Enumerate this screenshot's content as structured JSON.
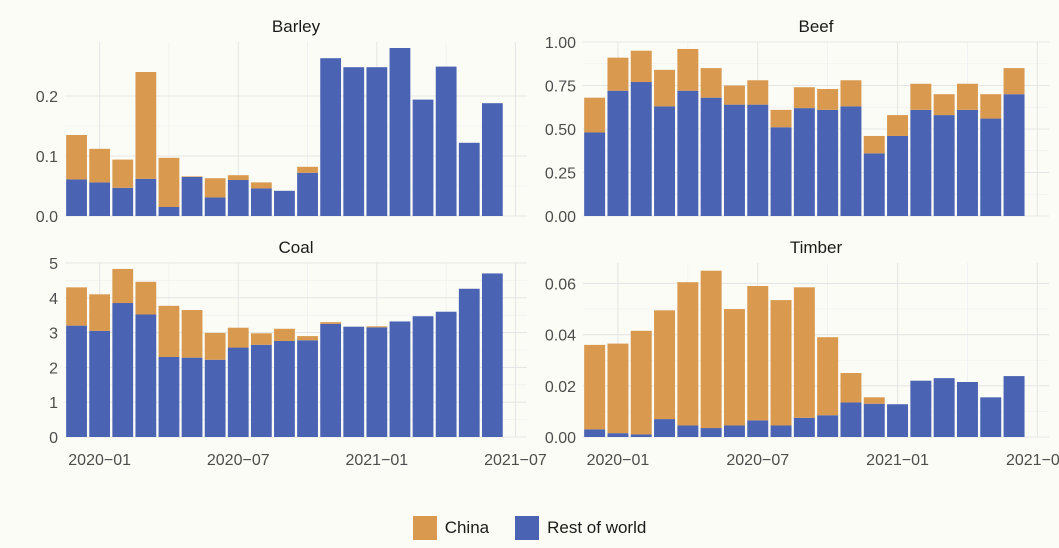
{
  "colors": {
    "china": "#d9994e",
    "rest": "#4a63b2",
    "background": "#fcfcf7"
  },
  "legend": {
    "items": [
      {
        "label": "China",
        "color": "#d9994e"
      },
      {
        "label": "Rest of world",
        "color": "#4a63b2"
      }
    ]
  },
  "chart_data": [
    {
      "type": "bar",
      "stacked": true,
      "title": "Barley",
      "x": [
        "2019-12",
        "2020-01",
        "2020-02",
        "2020-03",
        "2020-04",
        "2020-05",
        "2020-06",
        "2020-07",
        "2020-08",
        "2020-09",
        "2020-10",
        "2020-11",
        "2020-12",
        "2021-01",
        "2021-02",
        "2021-03",
        "2021-04",
        "2021-05",
        "2021-06",
        "2021-07"
      ],
      "series": [
        {
          "name": "Rest of world",
          "values": [
            0.061,
            0.056,
            0.047,
            0.062,
            0.015,
            0.065,
            0.031,
            0.06,
            0.046,
            0.042,
            0.072,
            0.263,
            0.248,
            0.248,
            0.28,
            0.194,
            0.249,
            0.122,
            0.188,
            null
          ]
        },
        {
          "name": "China",
          "values": [
            0.074,
            0.056,
            0.047,
            0.178,
            0.082,
            0.001,
            0.032,
            0.008,
            0.01,
            0.0,
            0.01,
            0.0,
            0.0,
            0.0,
            0.0,
            0.0,
            0.0,
            0.0,
            0.0,
            null
          ]
        }
      ],
      "ylim": [
        0,
        0.29
      ],
      "yticks": [
        0.0,
        0.1,
        0.2
      ],
      "ytick_labels": [
        "0.0",
        "0.1",
        "0.2"
      ],
      "xticks": [
        "2020-01",
        "2020-07",
        "2021-01",
        "2021-07"
      ],
      "xtick_labels": [],
      "grid": true
    },
    {
      "type": "bar",
      "stacked": true,
      "title": "Beef",
      "x": [
        "2019-12",
        "2020-01",
        "2020-02",
        "2020-03",
        "2020-04",
        "2020-05",
        "2020-06",
        "2020-07",
        "2020-08",
        "2020-09",
        "2020-10",
        "2020-11",
        "2020-12",
        "2021-01",
        "2021-02",
        "2021-03",
        "2021-04",
        "2021-05",
        "2021-06",
        "2021-07"
      ],
      "series": [
        {
          "name": "Rest of world",
          "values": [
            0.48,
            0.72,
            0.77,
            0.63,
            0.72,
            0.68,
            0.64,
            0.64,
            0.51,
            0.62,
            0.61,
            0.63,
            0.36,
            0.46,
            0.61,
            0.58,
            0.61,
            0.56,
            0.7,
            null
          ]
        },
        {
          "name": "China",
          "values": [
            0.2,
            0.19,
            0.18,
            0.21,
            0.24,
            0.17,
            0.11,
            0.14,
            0.1,
            0.12,
            0.12,
            0.15,
            0.1,
            0.12,
            0.15,
            0.12,
            0.15,
            0.14,
            0.15,
            null
          ]
        }
      ],
      "ylim": [
        0,
        1.0
      ],
      "yticks": [
        0.0,
        0.25,
        0.5,
        0.75,
        1.0
      ],
      "ytick_labels": [
        "0.00",
        "0.25",
        "0.50",
        "0.75",
        "1.00"
      ],
      "xticks": [
        "2020-01",
        "2020-07",
        "2021-01",
        "2021-07"
      ],
      "xtick_labels": [],
      "grid": true
    },
    {
      "type": "bar",
      "stacked": true,
      "title": "Coal",
      "x": [
        "2019-12",
        "2020-01",
        "2020-02",
        "2020-03",
        "2020-04",
        "2020-05",
        "2020-06",
        "2020-07",
        "2020-08",
        "2020-09",
        "2020-10",
        "2020-11",
        "2020-12",
        "2021-01",
        "2021-02",
        "2021-03",
        "2021-04",
        "2021-05",
        "2021-06",
        "2021-07"
      ],
      "series": [
        {
          "name": "Rest of world",
          "values": [
            3.2,
            3.05,
            3.85,
            3.52,
            2.3,
            2.28,
            2.22,
            2.57,
            2.65,
            2.76,
            2.78,
            3.25,
            3.17,
            3.15,
            3.32,
            3.47,
            3.6,
            4.26,
            4.7,
            null
          ]
        },
        {
          "name": "China",
          "values": [
            1.1,
            1.05,
            0.98,
            0.94,
            1.47,
            1.37,
            0.77,
            0.57,
            0.33,
            0.35,
            0.12,
            0.05,
            0.0,
            0.03,
            0.0,
            0.0,
            0.0,
            0.0,
            0.0,
            null
          ]
        }
      ],
      "ylim": [
        0,
        5.0
      ],
      "yticks": [
        0,
        1,
        2,
        3,
        4,
        5
      ],
      "ytick_labels": [
        "0",
        "1",
        "2",
        "3",
        "4",
        "5"
      ],
      "xticks": [
        "2020-01",
        "2020-07",
        "2021-01",
        "2021-07"
      ],
      "xtick_labels": [
        "2020−01",
        "2020−07",
        "2021−01",
        "2021−07"
      ],
      "grid": true
    },
    {
      "type": "bar",
      "stacked": true,
      "title": "Timber",
      "x": [
        "2019-12",
        "2020-01",
        "2020-02",
        "2020-03",
        "2020-04",
        "2020-05",
        "2020-06",
        "2020-07",
        "2020-08",
        "2020-09",
        "2020-10",
        "2020-11",
        "2020-12",
        "2021-01",
        "2021-02",
        "2021-03",
        "2021-04",
        "2021-05",
        "2021-06",
        "2021-07"
      ],
      "series": [
        {
          "name": "Rest of world",
          "values": [
            0.003,
            0.0015,
            0.001,
            0.007,
            0.0045,
            0.0035,
            0.0045,
            0.0065,
            0.0045,
            0.0075,
            0.0085,
            0.0135,
            0.013,
            0.0128,
            0.022,
            0.023,
            0.0215,
            0.0155,
            0.0238,
            null
          ]
        },
        {
          "name": "China",
          "values": [
            0.033,
            0.035,
            0.0405,
            0.0425,
            0.056,
            0.0615,
            0.0455,
            0.0525,
            0.049,
            0.051,
            0.0305,
            0.0115,
            0.0025,
            0.0,
            0.0,
            0.0,
            0.0,
            0.0,
            0.0,
            null
          ]
        }
      ],
      "ylim": [
        0,
        0.068
      ],
      "yticks": [
        0.0,
        0.02,
        0.04,
        0.06
      ],
      "ytick_labels": [
        "0.00",
        "0.02",
        "0.04",
        "0.06"
      ],
      "xticks": [
        "2020-01",
        "2020-07",
        "2021-01",
        "2021-07"
      ],
      "xtick_labels": [
        "2020−01",
        "2020−07",
        "2021−01",
        "2021−07"
      ],
      "grid": true
    }
  ]
}
